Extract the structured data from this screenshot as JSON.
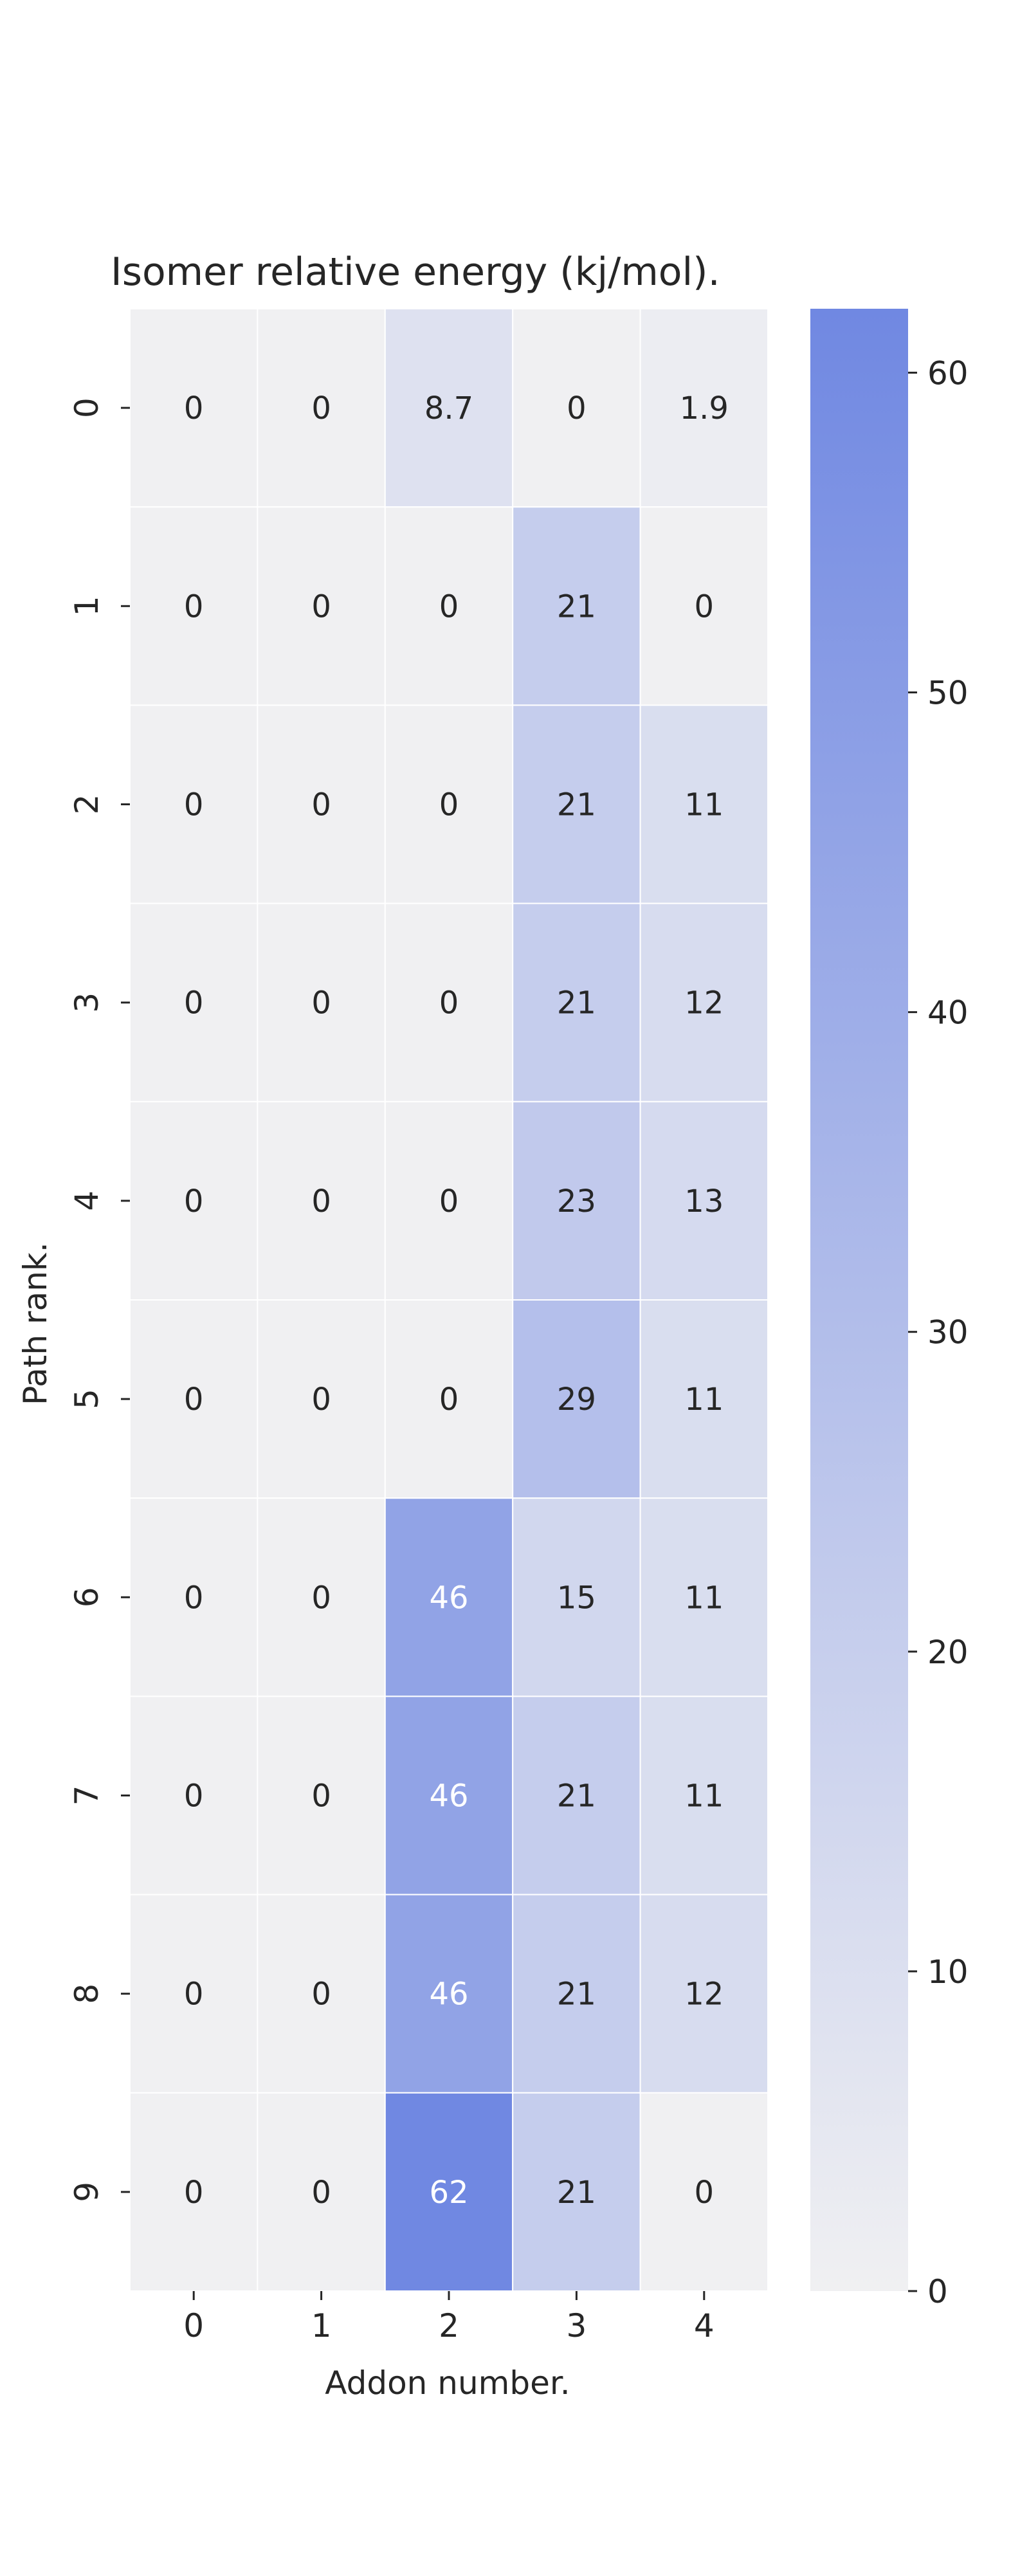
{
  "chart_data": {
    "type": "heatmap",
    "title": "Isomer relative energy (kj/mol).",
    "xlabel": "Addon number.",
    "ylabel": "Path rank.",
    "x_categories": [
      "0",
      "1",
      "2",
      "3",
      "4"
    ],
    "y_categories": [
      "0",
      "1",
      "2",
      "3",
      "4",
      "5",
      "6",
      "7",
      "8",
      "9"
    ],
    "values": [
      [
        0,
        0,
        8.7,
        0,
        1.9
      ],
      [
        0,
        0,
        0,
        21,
        0
      ],
      [
        0,
        0,
        0,
        21,
        11
      ],
      [
        0,
        0,
        0,
        21,
        12
      ],
      [
        0,
        0,
        0,
        23,
        13
      ],
      [
        0,
        0,
        0,
        29,
        11
      ],
      [
        0,
        0,
        46,
        15,
        11
      ],
      [
        0,
        0,
        46,
        21,
        11
      ],
      [
        0,
        0,
        46,
        21,
        12
      ],
      [
        0,
        0,
        62,
        21,
        0
      ]
    ],
    "cell_labels": [
      [
        "0",
        "0",
        "8.7",
        "0",
        "1.9"
      ],
      [
        "0",
        "0",
        "0",
        "21",
        "0"
      ],
      [
        "0",
        "0",
        "0",
        "21",
        "11"
      ],
      [
        "0",
        "0",
        "0",
        "21",
        "12"
      ],
      [
        "0",
        "0",
        "0",
        "23",
        "13"
      ],
      [
        "0",
        "0",
        "0",
        "29",
        "11"
      ],
      [
        "0",
        "0",
        "46",
        "15",
        "11"
      ],
      [
        "0",
        "0",
        "46",
        "21",
        "11"
      ],
      [
        "0",
        "0",
        "46",
        "21",
        "12"
      ],
      [
        "0",
        "0",
        "62",
        "21",
        "0"
      ]
    ],
    "colorbar": {
      "min": 0,
      "max": 62,
      "ticks": [
        0,
        10,
        20,
        30,
        40,
        50,
        60
      ],
      "tick_labels": [
        "0",
        "10",
        "20",
        "30",
        "40",
        "50",
        "60"
      ],
      "low_color": "#f0f0f2",
      "high_color": "#7088e2"
    },
    "grid": true
  }
}
